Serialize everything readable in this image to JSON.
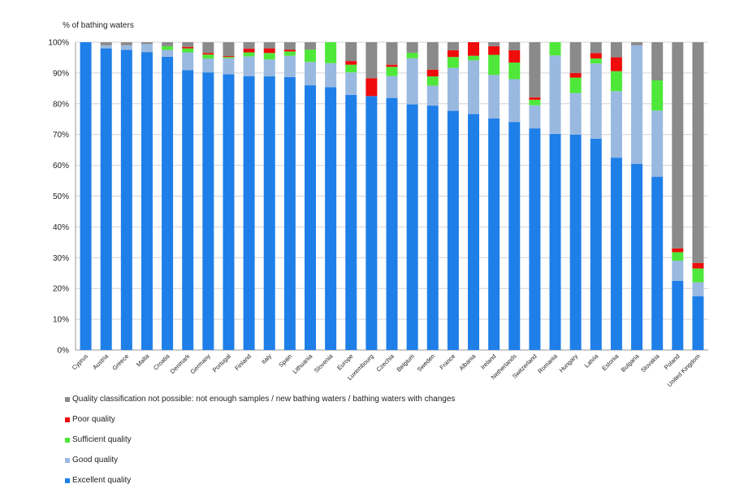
{
  "chart_data": {
    "type": "bar",
    "stacked": true,
    "ylabel": "% of bathing waters",
    "ylim": [
      0,
      100
    ],
    "yticks": [
      "0%",
      "10%",
      "20%",
      "30%",
      "40%",
      "50%",
      "60%",
      "70%",
      "80%",
      "90%",
      "100%"
    ],
    "grid": true,
    "categories": [
      "Cyprus",
      "Austria",
      "Greece",
      "Malta",
      "Croatia",
      "Denmark",
      "Germany",
      "Portugal",
      "Finland",
      "Italy",
      "Spain",
      "Lithuania",
      "Slovenia",
      "Europe",
      "Luxembourg",
      "Czechia",
      "Belgium",
      "Sweden",
      "France",
      "Albania",
      "Ireland",
      "Netherlands",
      "Switzerland",
      "Romania",
      "Hungary",
      "Latvia",
      "Estonia",
      "Bulgaria",
      "Slovakia",
      "Poland",
      "United Kingdom"
    ],
    "series": [
      {
        "name": "Excellent quality",
        "color": "#1f7fe8",
        "values": [
          100,
          98,
          97.5,
          96.8,
          95.3,
          90.9,
          90.2,
          89.6,
          89,
          88.9,
          88.7,
          86,
          85.4,
          82.9,
          82.5,
          81.9,
          79.8,
          79.4,
          77.7,
          76.7,
          75.2,
          74.1,
          72,
          70.2,
          70,
          68.6,
          62.5,
          60.5,
          56.3,
          22.5,
          17.5
        ]
      },
      {
        "name": "Good quality",
        "color": "#9ab9e1",
        "values": [
          0,
          1,
          1.5,
          2.6,
          2.2,
          5.8,
          4.5,
          5.2,
          6.4,
          5.5,
          6.9,
          7.6,
          7.8,
          7.3,
          0,
          7.1,
          15,
          6.5,
          14,
          17.4,
          14.2,
          13.9,
          7.5,
          25.5,
          13.5,
          24.5,
          21.6,
          38.5,
          21.5,
          6.5,
          4.5
        ]
      },
      {
        "name": "Sufficient quality",
        "color": "#4fe83a",
        "values": [
          0,
          0,
          0,
          0,
          1.2,
          1.3,
          1.3,
          0.4,
          1.3,
          2.1,
          1.4,
          4,
          6.8,
          2.5,
          0,
          3,
          1.8,
          3,
          3.5,
          1.5,
          6.5,
          5.4,
          1.8,
          4.3,
          5,
          1.6,
          6.5,
          0,
          9.8,
          2.8,
          4.5
        ]
      },
      {
        "name": "Poor quality",
        "color": "#ee0c0c",
        "values": [
          0,
          0,
          0,
          0,
          0,
          0.5,
          0.5,
          0.3,
          1.2,
          1.5,
          0.6,
          0,
          0,
          1.2,
          5.8,
          0.7,
          0,
          2.2,
          2.2,
          4.4,
          2.8,
          4,
          0.8,
          0,
          1.5,
          1.8,
          4.5,
          0,
          0,
          1.2,
          1.8
        ]
      },
      {
        "name": "Quality classification not possible:  not enough samples / new bathing waters / bathing waters with changes",
        "color": "#8a8a8a",
        "values": [
          0,
          1,
          1,
          0.6,
          1.3,
          1.5,
          3.5,
          4.5,
          2.1,
          2,
          2.4,
          2.4,
          0,
          6.1,
          11.7,
          7.3,
          3.4,
          8.9,
          2.6,
          0,
          1.3,
          2.6,
          17.9,
          0,
          10,
          3.5,
          4.9,
          1,
          12.4,
          67,
          71.7
        ]
      }
    ],
    "legend": {
      "placement": "bottom-left",
      "order": [
        4,
        3,
        2,
        1,
        0
      ]
    }
  }
}
